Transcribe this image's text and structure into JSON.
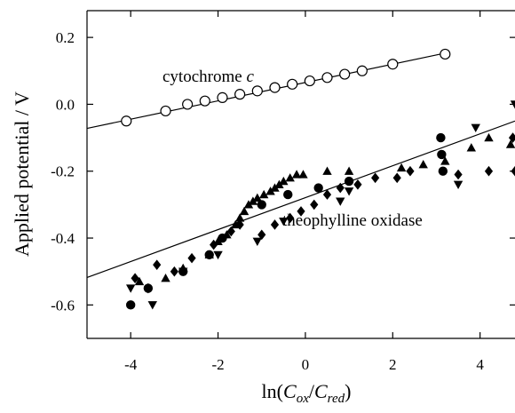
{
  "chart_data": {
    "type": "scatter",
    "xlabel": {
      "prefix": "ln(",
      "num_base": "C",
      "num_sub": "ox",
      "sep": "/",
      "den_base": "C",
      "den_sub": "red",
      "suffix": ")"
    },
    "ylabel": "Applied potential / V",
    "xlim": [
      -5,
      4.8
    ],
    "ylim": [
      -0.7,
      0.28
    ],
    "x_ticks": [
      -4,
      -2,
      0,
      2,
      4
    ],
    "x_tick_labels": [
      "-4",
      "-2",
      "0",
      "2",
      "4"
    ],
    "y_ticks": [
      0.2,
      0.0,
      -0.2,
      -0.4,
      -0.6
    ],
    "y_tick_labels": [
      "0.2",
      "0.0",
      "-0.2",
      "-0.4",
      "-0.6"
    ],
    "grid": false,
    "annotations": [
      {
        "id": "cyt",
        "text": "cytochrome ",
        "italic_suffix": "c",
        "at": [
          -1.5,
          0.16
        ]
      },
      {
        "id": "theo",
        "text": "theophylline oxidase",
        "at": [
          1.8,
          -0.44
        ]
      }
    ],
    "series": [
      {
        "marker": "open-circle",
        "points": [
          [
            -4.1,
            -0.05
          ],
          [
            -3.2,
            -0.02
          ],
          [
            -2.7,
            0.0
          ],
          [
            -2.3,
            0.01
          ],
          [
            -1.9,
            0.02
          ],
          [
            -1.5,
            0.03
          ],
          [
            -1.1,
            0.04
          ],
          [
            -0.7,
            0.05
          ],
          [
            -0.3,
            0.06
          ],
          [
            0.1,
            0.07
          ],
          [
            0.5,
            0.08
          ],
          [
            0.9,
            0.09
          ],
          [
            1.3,
            0.1
          ],
          [
            2.0,
            0.12
          ],
          [
            3.2,
            0.15
          ]
        ]
      },
      {
        "marker": "filled-circle",
        "points": [
          [
            -4.0,
            -0.6
          ],
          [
            -3.6,
            -0.55
          ],
          [
            -2.8,
            -0.5
          ],
          [
            -2.2,
            -0.45
          ],
          [
            -1.9,
            -0.4
          ],
          [
            -1.0,
            -0.3
          ],
          [
            -0.4,
            -0.27
          ],
          [
            0.3,
            -0.25
          ],
          [
            1.0,
            -0.23
          ],
          [
            3.1,
            -0.1
          ],
          [
            3.12,
            -0.15
          ],
          [
            3.15,
            -0.2
          ]
        ]
      },
      {
        "marker": "filled-triangle-up",
        "points": [
          [
            -3.8,
            -0.53
          ],
          [
            -3.2,
            -0.52
          ],
          [
            -2.8,
            -0.49
          ],
          [
            -2.2,
            -0.45
          ],
          [
            -2.0,
            -0.41
          ],
          [
            -1.8,
            -0.39
          ],
          [
            -1.6,
            -0.36
          ],
          [
            -1.5,
            -0.34
          ],
          [
            -1.4,
            -0.32
          ],
          [
            -1.3,
            -0.3
          ],
          [
            -1.2,
            -0.29
          ],
          [
            -1.1,
            -0.28
          ],
          [
            -0.95,
            -0.27
          ],
          [
            -0.8,
            -0.26
          ],
          [
            -0.7,
            -0.25
          ],
          [
            -0.6,
            -0.24
          ],
          [
            -0.5,
            -0.23
          ],
          [
            -0.35,
            -0.22
          ],
          [
            -0.2,
            -0.21
          ],
          [
            -0.05,
            -0.21
          ],
          [
            0.5,
            -0.2
          ],
          [
            1.0,
            -0.2
          ],
          [
            2.2,
            -0.19
          ],
          [
            2.7,
            -0.18
          ],
          [
            3.2,
            -0.17
          ],
          [
            3.8,
            -0.13
          ],
          [
            4.2,
            -0.1
          ],
          [
            4.7,
            -0.12
          ]
        ]
      },
      {
        "marker": "filled-triangle-down",
        "points": [
          [
            -4.0,
            -0.55
          ],
          [
            -3.5,
            -0.6
          ],
          [
            -2.8,
            -0.5
          ],
          [
            -2.0,
            -0.45
          ],
          [
            -1.1,
            -0.41
          ],
          [
            -0.5,
            -0.35
          ],
          [
            0.8,
            -0.29
          ],
          [
            1.0,
            -0.26
          ],
          [
            3.5,
            -0.24
          ],
          [
            3.9,
            -0.07
          ],
          [
            4.8,
            0.0
          ]
        ]
      },
      {
        "marker": "filled-diamond",
        "points": [
          [
            -3.9,
            -0.52
          ],
          [
            -3.6,
            -0.55
          ],
          [
            -3.4,
            -0.48
          ],
          [
            -3.0,
            -0.5
          ],
          [
            -2.6,
            -0.46
          ],
          [
            -2.1,
            -0.42
          ],
          [
            -1.7,
            -0.38
          ],
          [
            -1.5,
            -0.36
          ],
          [
            -1.0,
            -0.39
          ],
          [
            -0.7,
            -0.36
          ],
          [
            -0.35,
            -0.34
          ],
          [
            -0.1,
            -0.32
          ],
          [
            0.2,
            -0.3
          ],
          [
            0.5,
            -0.27
          ],
          [
            0.8,
            -0.25
          ],
          [
            1.2,
            -0.24
          ],
          [
            1.6,
            -0.22
          ],
          [
            2.1,
            -0.22
          ],
          [
            2.4,
            -0.2
          ],
          [
            3.5,
            -0.21
          ],
          [
            4.2,
            -0.2
          ],
          [
            4.75,
            -0.1
          ],
          [
            4.8,
            -0.2
          ]
        ]
      }
    ],
    "fit_lines": [
      {
        "from": [
          -5.0,
          -0.072
        ],
        "to": [
          3.2,
          0.153
        ]
      },
      {
        "from": [
          -5.0,
          -0.518
        ],
        "to": [
          4.8,
          -0.05
        ]
      }
    ]
  }
}
